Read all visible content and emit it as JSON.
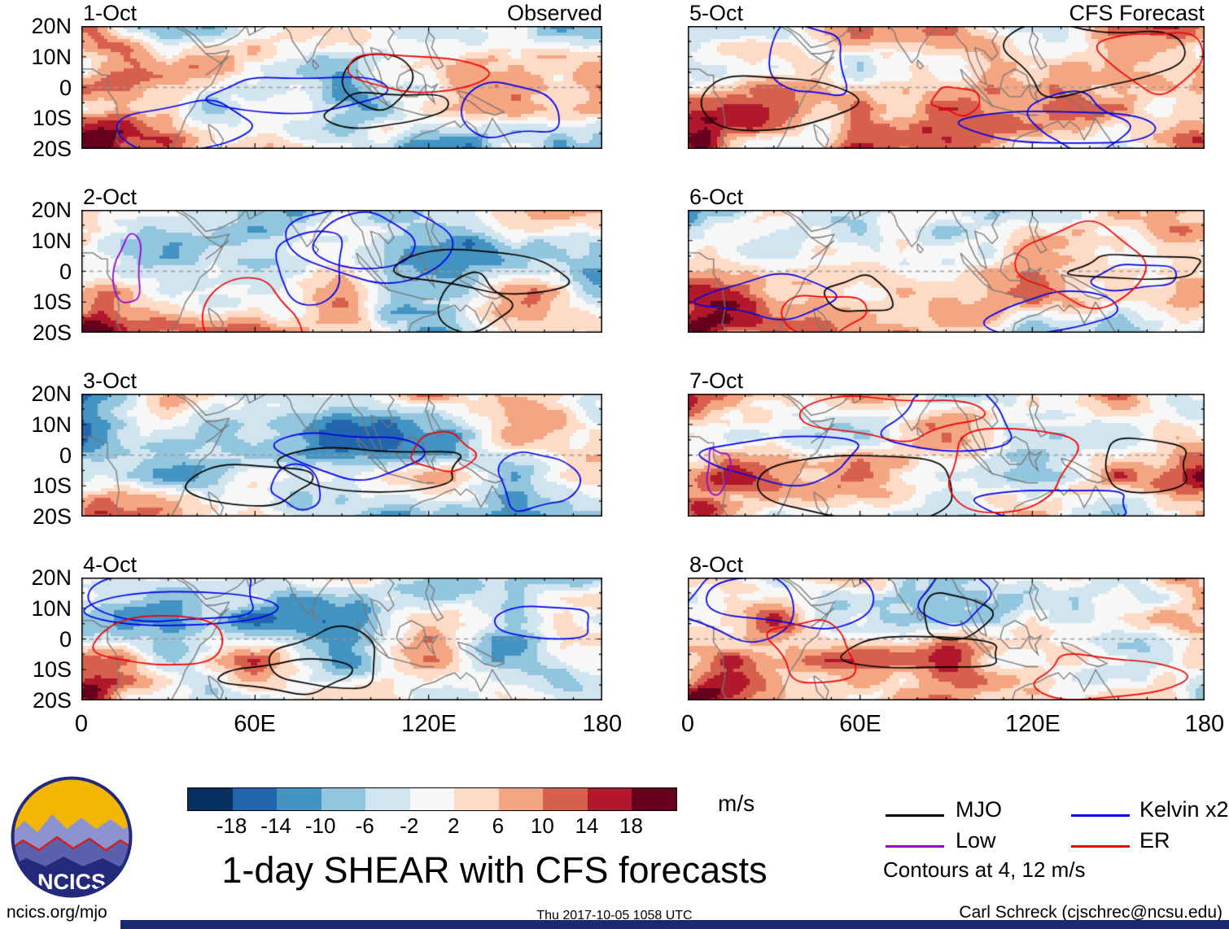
{
  "chart_data": {
    "type": "heatmap",
    "title": "1-day SHEAR with CFS forecasts",
    "panels": [
      {
        "date": "1-Oct",
        "column": "Observed",
        "corner": "Observed"
      },
      {
        "date": "2-Oct",
        "column": "Observed"
      },
      {
        "date": "3-Oct",
        "column": "Observed"
      },
      {
        "date": "4-Oct",
        "column": "Observed"
      },
      {
        "date": "5-Oct",
        "column": "CFS Forecast",
        "corner": "CFS Forecast"
      },
      {
        "date": "6-Oct",
        "column": "CFS Forecast"
      },
      {
        "date": "7-Oct",
        "column": "CFS Forecast"
      },
      {
        "date": "8-Oct",
        "column": "CFS Forecast"
      }
    ],
    "x_axis": {
      "tick_labels": [
        "0",
        "60E",
        "120E",
        "180"
      ],
      "range": [
        0,
        180
      ]
    },
    "y_axis": {
      "tick_labels": [
        "20N",
        "10N",
        "0",
        "10S",
        "20S"
      ],
      "range": [
        20,
        -20
      ]
    },
    "colorbar": {
      "unit": "m/s",
      "boundaries": [
        -18,
        -14,
        -10,
        -6,
        -2,
        2,
        6,
        10,
        14,
        18
      ],
      "colors": [
        "#053061",
        "#2166ac",
        "#4393c3",
        "#92c5de",
        "#d1e5f0",
        "#f7f7f7",
        "#fddbc7",
        "#f4a582",
        "#d6604d",
        "#b2182b",
        "#67001f"
      ]
    },
    "contour_legend": [
      {
        "label": "MJO",
        "color": "#000000"
      },
      {
        "label": "Low",
        "color": "#9400d3"
      },
      {
        "label": "Kelvin x2",
        "color": "#0000ee"
      },
      {
        "label": "ER",
        "color": "#ee0000"
      }
    ],
    "contour_levels_note": "Contours at 4, 12 m/s",
    "equator_line": "dashed gray at 0 latitude",
    "legend_position": "bottom-right",
    "grid": false
  },
  "logo": {
    "text": "NCICS"
  },
  "footer": {
    "left": "ncics.org/mjo",
    "center": "Thu 2017-10-05 1058 UTC",
    "right": "Carl Schreck (cjschrec@ncsu.edu)"
  }
}
